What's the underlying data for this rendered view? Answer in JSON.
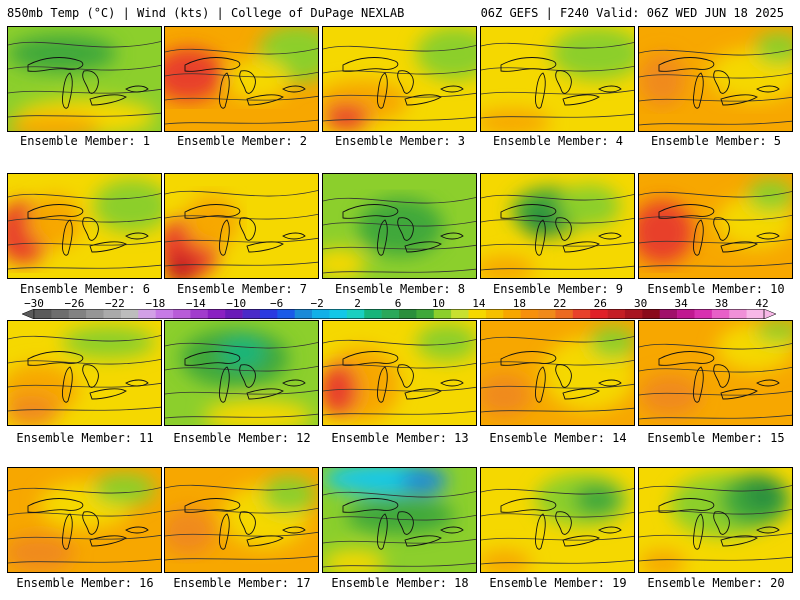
{
  "header": {
    "left": "850mb Temp (°C) | Wind (kts) | College of DuPage NEXLAB",
    "right": "06Z GEFS | F240 Valid: 06Z WED JUN 18 2025"
  },
  "panels": [
    {
      "caption": "Ensemble Member: 1",
      "base": "#8ccf2c",
      "blobs": [
        [
          "#3fa83a",
          0.35,
          0.25,
          0.7,
          0.35
        ],
        [
          "#f5d800",
          0.5,
          0.85,
          0.9,
          0.35
        ],
        [
          "#f7a700",
          0.3,
          0.95,
          0.6,
          0.25
        ]
      ]
    },
    {
      "caption": "Ensemble Member: 2",
      "base": "#f7a700",
      "blobs": [
        [
          "#e8412a",
          0.15,
          0.45,
          0.45,
          0.5
        ],
        [
          "#8ccf2c",
          0.85,
          0.25,
          0.5,
          0.55
        ],
        [
          "#f5d800",
          0.6,
          0.5,
          0.4,
          0.4
        ]
      ]
    },
    {
      "caption": "Ensemble Member: 3",
      "base": "#f5d800",
      "blobs": [
        [
          "#8ccf2c",
          0.85,
          0.25,
          0.5,
          0.5
        ],
        [
          "#f7a700",
          0.25,
          0.7,
          0.6,
          0.4
        ],
        [
          "#e8412a",
          0.15,
          0.85,
          0.3,
          0.25
        ]
      ]
    },
    {
      "caption": "Ensemble Member: 4",
      "base": "#f5d800",
      "blobs": [
        [
          "#8ccf2c",
          0.75,
          0.25,
          0.6,
          0.5
        ],
        [
          "#f7a700",
          0.2,
          0.9,
          0.5,
          0.25
        ]
      ]
    },
    {
      "caption": "Ensemble Member: 5",
      "base": "#f7a700",
      "blobs": [
        [
          "#f5d800",
          0.75,
          0.45,
          0.6,
          0.5
        ],
        [
          "#8ccf2c",
          0.9,
          0.2,
          0.3,
          0.3
        ],
        [
          "#f08a1a",
          0.15,
          0.5,
          0.3,
          0.5
        ]
      ]
    },
    {
      "caption": "Ensemble Member: 6",
      "base": "#f5d800",
      "blobs": [
        [
          "#e8412a",
          0.1,
          0.55,
          0.35,
          0.6
        ],
        [
          "#f7a700",
          0.3,
          0.45,
          0.35,
          0.5
        ],
        [
          "#8ccf2c",
          0.8,
          0.3,
          0.5,
          0.5
        ]
      ]
    },
    {
      "caption": "Ensemble Member: 7",
      "base": "#f5d800",
      "blobs": [
        [
          "#e8412a",
          0.15,
          0.7,
          0.4,
          0.6
        ],
        [
          "#f7a700",
          0.3,
          0.45,
          0.35,
          0.5
        ],
        [
          "#c41e24",
          0.1,
          0.9,
          0.2,
          0.3
        ]
      ]
    },
    {
      "caption": "Ensemble Member: 8",
      "base": "#8ccf2c",
      "blobs": [
        [
          "#3fa83a",
          0.5,
          0.5,
          0.55,
          0.55
        ],
        [
          "#f5d800",
          0.1,
          0.85,
          0.35,
          0.3
        ]
      ]
    },
    {
      "caption": "Ensemble Member: 9",
      "base": "#f5d800",
      "blobs": [
        [
          "#3fa83a",
          0.45,
          0.35,
          0.5,
          0.45
        ],
        [
          "#2a8f3c",
          0.4,
          0.45,
          0.25,
          0.3
        ],
        [
          "#8ccf2c",
          0.7,
          0.3,
          0.4,
          0.4
        ],
        [
          "#f7a700",
          0.15,
          0.9,
          0.4,
          0.25
        ]
      ]
    },
    {
      "caption": "Ensemble Member: 10",
      "base": "#f7a700",
      "blobs": [
        [
          "#e8412a",
          0.15,
          0.55,
          0.4,
          0.6
        ],
        [
          "#f5d800",
          0.75,
          0.45,
          0.5,
          0.5
        ],
        [
          "#8ccf2c",
          0.85,
          0.2,
          0.3,
          0.3
        ]
      ]
    },
    {
      "caption": "Ensemble Member: 11",
      "base": "#f5d800",
      "blobs": [
        [
          "#8ccf2c",
          0.65,
          0.2,
          0.6,
          0.3
        ],
        [
          "#f7a700",
          0.2,
          0.65,
          0.5,
          0.5
        ],
        [
          "#f08a1a",
          0.15,
          0.85,
          0.35,
          0.3
        ]
      ]
    },
    {
      "caption": "Ensemble Member: 12",
      "base": "#8ccf2c",
      "blobs": [
        [
          "#3fa83a",
          0.45,
          0.35,
          0.7,
          0.55
        ],
        [
          "#16b57a",
          0.5,
          0.3,
          0.3,
          0.3
        ],
        [
          "#f5d800",
          0.6,
          0.9,
          0.7,
          0.3
        ]
      ]
    },
    {
      "caption": "Ensemble Member: 13",
      "base": "#f5d800",
      "blobs": [
        [
          "#f7a700",
          0.25,
          0.6,
          0.5,
          0.7
        ],
        [
          "#e8412a",
          0.1,
          0.65,
          0.25,
          0.5
        ],
        [
          "#8ccf2c",
          0.8,
          0.2,
          0.4,
          0.35
        ]
      ]
    },
    {
      "caption": "Ensemble Member: 14",
      "base": "#f7a700",
      "blobs": [
        [
          "#f5d800",
          0.7,
          0.5,
          0.6,
          0.7
        ],
        [
          "#8ccf2c",
          0.85,
          0.2,
          0.3,
          0.3
        ],
        [
          "#f08a1a",
          0.15,
          0.7,
          0.35,
          0.4
        ]
      ]
    },
    {
      "caption": "Ensemble Member: 15",
      "base": "#f7a700",
      "blobs": [
        [
          "#f5d800",
          0.75,
          0.25,
          0.5,
          0.45
        ],
        [
          "#8ccf2c",
          0.9,
          0.1,
          0.3,
          0.2
        ],
        [
          "#f08a1a",
          0.2,
          0.7,
          0.4,
          0.4
        ]
      ]
    },
    {
      "caption": "Ensemble Member: 16",
      "base": "#f7a700",
      "blobs": [
        [
          "#f5d800",
          0.5,
          0.35,
          0.6,
          0.45
        ],
        [
          "#8ccf2c",
          0.75,
          0.2,
          0.4,
          0.3
        ],
        [
          "#f08a1a",
          0.2,
          0.8,
          0.45,
          0.35
        ]
      ]
    },
    {
      "caption": "Ensemble Member: 17",
      "base": "#f7a700",
      "blobs": [
        [
          "#f5d800",
          0.65,
          0.45,
          0.55,
          0.6
        ],
        [
          "#8ccf2c",
          0.8,
          0.25,
          0.35,
          0.35
        ],
        [
          "#f08a1a",
          0.15,
          0.6,
          0.35,
          0.45
        ]
      ]
    },
    {
      "caption": "Ensemble Member: 18",
      "base": "#8ccf2c",
      "blobs": [
        [
          "#12c8e8",
          0.4,
          0.1,
          0.8,
          0.3
        ],
        [
          "#1a8ad8",
          0.65,
          0.12,
          0.3,
          0.25
        ],
        [
          "#3fa83a",
          0.5,
          0.45,
          0.7,
          0.35
        ],
        [
          "#f5d800",
          0.2,
          0.9,
          0.4,
          0.25
        ]
      ]
    },
    {
      "caption": "Ensemble Member: 19",
      "base": "#f5d800",
      "blobs": [
        [
          "#8ccf2c",
          0.65,
          0.3,
          0.6,
          0.5
        ],
        [
          "#3fa83a",
          0.75,
          0.3,
          0.3,
          0.3
        ],
        [
          "#f7a700",
          0.15,
          0.9,
          0.35,
          0.25
        ]
      ]
    },
    {
      "caption": "Ensemble Member: 20",
      "base": "#f5d800",
      "blobs": [
        [
          "#8ccf2c",
          0.55,
          0.35,
          0.7,
          0.6
        ],
        [
          "#3fa83a",
          0.75,
          0.3,
          0.45,
          0.5
        ],
        [
          "#2a8f3c",
          0.8,
          0.25,
          0.25,
          0.3
        ],
        [
          "#f7a700",
          0.15,
          0.9,
          0.3,
          0.25
        ]
      ]
    }
  ],
  "colorbar": {
    "labels": [
      "−30",
      "−26",
      "−22",
      "−18",
      "−14",
      "−10",
      "−6",
      "−2",
      "2",
      "6",
      "10",
      "14",
      "18",
      "22",
      "26",
      "30",
      "34",
      "38",
      "42"
    ],
    "colors": [
      "#5a5a5a",
      "#6e6e6e",
      "#828282",
      "#969696",
      "#aaaaaa",
      "#bdbdbd",
      "#d2a0e6",
      "#c77ae6",
      "#b85cd8",
      "#a13ccc",
      "#8a20c2",
      "#6a1ab8",
      "#4a2ac8",
      "#2a3ae0",
      "#1a5ae8",
      "#1a8ad8",
      "#12b0e8",
      "#12c8e8",
      "#1ad0c0",
      "#16b57a",
      "#2aa85a",
      "#2a8f3c",
      "#3fa83a",
      "#8ccf2c",
      "#c8e030",
      "#f5d800",
      "#f5c000",
      "#f7a700",
      "#f7900c",
      "#f08a1a",
      "#ec6a20",
      "#e8412a",
      "#e02028",
      "#c41e24",
      "#a81420",
      "#8a0a1a",
      "#a0106a",
      "#c01890",
      "#d830b0",
      "#e860c8",
      "#f090d8",
      "#f8b8e8"
    ]
  }
}
